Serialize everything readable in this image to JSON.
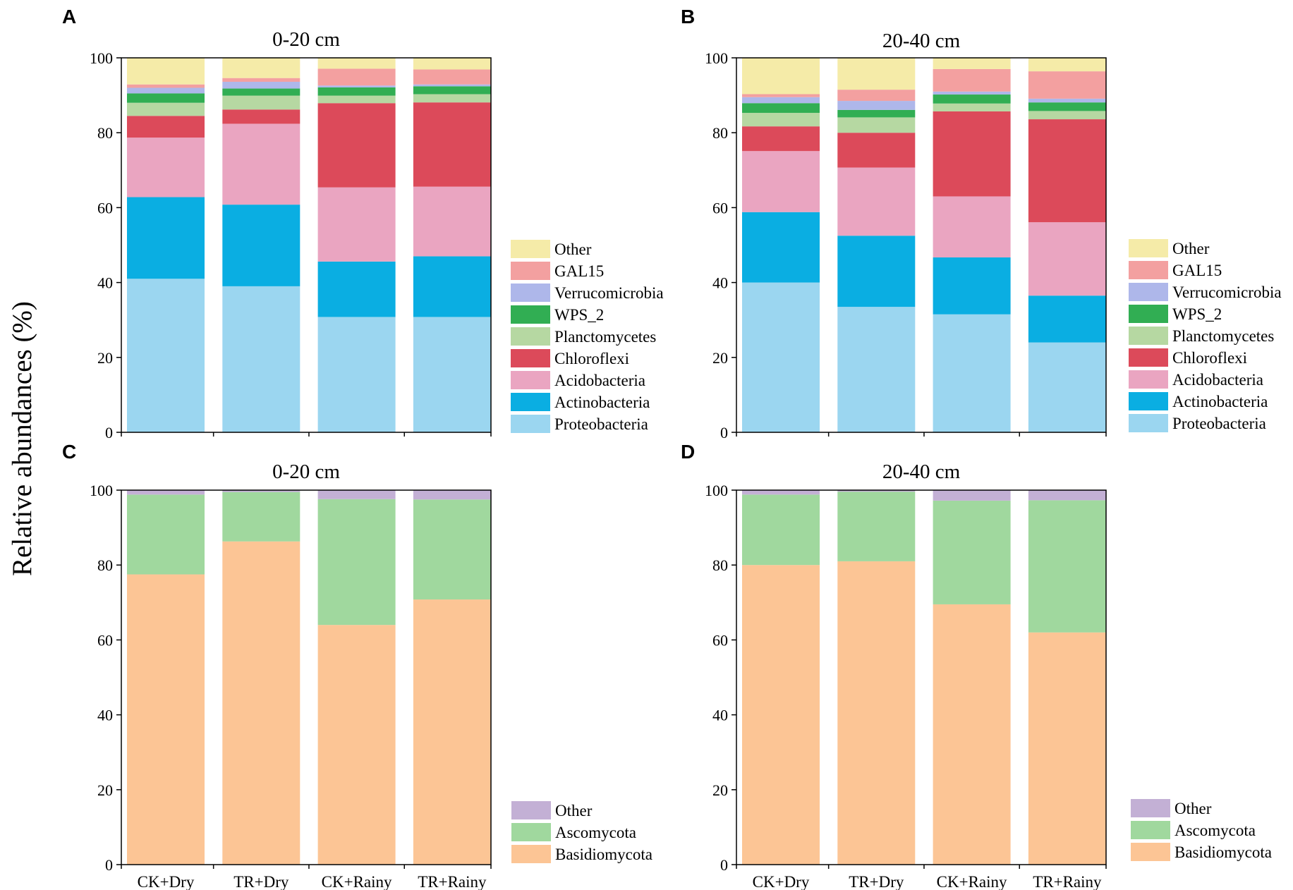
{
  "figure": {
    "ylabel": "Relative abundances (%)",
    "categories": [
      "CK+Dry",
      "TR+Dry",
      "CK+Rainy",
      "TR+Rainy"
    ]
  },
  "chart_data": [
    {
      "type": "bar",
      "stacked": true,
      "panel": "A",
      "title": "0-20 cm",
      "ylabel": "Relative abundances (%)",
      "ylim": [
        0,
        100
      ],
      "yticks": [
        0,
        20,
        40,
        60,
        80,
        100
      ],
      "categories": [
        "CK+Dry",
        "TR+Dry",
        "CK+Rainy",
        "TR+Rainy"
      ],
      "legend_position": "right",
      "series": [
        {
          "name": "Proteobacteria",
          "color": "#9bd6f0",
          "values": [
            41.0,
            39.0,
            30.8,
            30.8
          ]
        },
        {
          "name": "Actinobacteria",
          "color": "#0aaee2",
          "values": [
            21.8,
            21.8,
            14.8,
            16.2
          ]
        },
        {
          "name": "Acidobacteria",
          "color": "#eaa5c1",
          "values": [
            15.9,
            21.6,
            19.8,
            18.6
          ]
        },
        {
          "name": "Chloroflexi",
          "color": "#dc4a5a",
          "values": [
            5.8,
            3.8,
            22.5,
            22.5
          ]
        },
        {
          "name": "Planctomycetes",
          "color": "#b6d8a2",
          "values": [
            3.5,
            3.7,
            2.0,
            2.2
          ]
        },
        {
          "name": "WPS_2",
          "color": "#31ae53",
          "values": [
            2.5,
            1.9,
            2.2,
            2.1
          ]
        },
        {
          "name": "Verrucomicrobia",
          "color": "#aeb7ea",
          "values": [
            1.5,
            1.8,
            0.5,
            0.5
          ]
        },
        {
          "name": "GAL15",
          "color": "#f3a0a0",
          "values": [
            0.9,
            1.0,
            4.5,
            4.0
          ]
        },
        {
          "name": "Other",
          "color": "#f5eba8",
          "values": [
            7.1,
            5.4,
            2.9,
            3.1
          ]
        }
      ]
    },
    {
      "type": "bar",
      "stacked": true,
      "panel": "B",
      "title": "20-40 cm",
      "ylim": [
        0,
        100
      ],
      "yticks": [
        0,
        20,
        40,
        60,
        80,
        100
      ],
      "categories": [
        "CK+Dry",
        "TR+Dry",
        "CK+Rainy",
        "TR+Rainy"
      ],
      "legend_position": "right",
      "series": [
        {
          "name": "Proteobacteria",
          "color": "#9bd6f0",
          "values": [
            40.0,
            33.5,
            31.5,
            24.0
          ]
        },
        {
          "name": "Actinobacteria",
          "color": "#0aaee2",
          "values": [
            18.8,
            19.0,
            15.2,
            12.5
          ]
        },
        {
          "name": "Acidobacteria",
          "color": "#eaa5c1",
          "values": [
            16.3,
            18.2,
            16.3,
            19.6
          ]
        },
        {
          "name": "Chloroflexi",
          "color": "#dc4a5a",
          "values": [
            6.6,
            9.3,
            22.7,
            27.5
          ]
        },
        {
          "name": "Planctomycetes",
          "color": "#b6d8a2",
          "values": [
            3.6,
            4.1,
            2.1,
            2.2
          ]
        },
        {
          "name": "WPS_2",
          "color": "#31ae53",
          "values": [
            2.6,
            2.0,
            2.4,
            2.3
          ]
        },
        {
          "name": "Verrucomicrobia",
          "color": "#aeb7ea",
          "values": [
            1.6,
            2.4,
            0.8,
            1.0
          ]
        },
        {
          "name": "GAL15",
          "color": "#f3a0a0",
          "values": [
            0.8,
            3.0,
            6.0,
            7.3
          ]
        },
        {
          "name": "Other",
          "color": "#f5eba8",
          "values": [
            9.7,
            8.5,
            3.0,
            3.6
          ]
        }
      ]
    },
    {
      "type": "bar",
      "stacked": true,
      "panel": "C",
      "title": "0-20 cm",
      "ylim": [
        0,
        100
      ],
      "yticks": [
        0,
        20,
        40,
        60,
        80,
        100
      ],
      "categories": [
        "CK+Dry",
        "TR+Dry",
        "CK+Rainy",
        "TR+Rainy"
      ],
      "legend_position": "bottom-right",
      "series": [
        {
          "name": "Basidiomycota",
          "color": "#fcc595",
          "values": [
            77.5,
            86.3,
            64.0,
            70.8
          ]
        },
        {
          "name": "Ascomycota",
          "color": "#a0d89e",
          "values": [
            21.3,
            13.2,
            33.6,
            26.7
          ]
        },
        {
          "name": "Other",
          "color": "#c3b0d5",
          "values": [
            1.2,
            0.5,
            2.4,
            2.5
          ]
        }
      ]
    },
    {
      "type": "bar",
      "stacked": true,
      "panel": "D",
      "title": "20-40 cm",
      "ylim": [
        0,
        100
      ],
      "yticks": [
        0,
        20,
        40,
        60,
        80,
        100
      ],
      "categories": [
        "CK+Dry",
        "TR+Dry",
        "CK+Rainy",
        "TR+Rainy"
      ],
      "legend_position": "bottom-right",
      "series": [
        {
          "name": "Basidiomycota",
          "color": "#fcc595",
          "values": [
            80.0,
            81.0,
            69.5,
            62.0
          ]
        },
        {
          "name": "Ascomycota",
          "color": "#a0d89e",
          "values": [
            18.8,
            18.6,
            27.7,
            35.3
          ]
        },
        {
          "name": "Other",
          "color": "#c3b0d5",
          "values": [
            1.2,
            0.4,
            2.8,
            2.7
          ]
        }
      ]
    }
  ]
}
